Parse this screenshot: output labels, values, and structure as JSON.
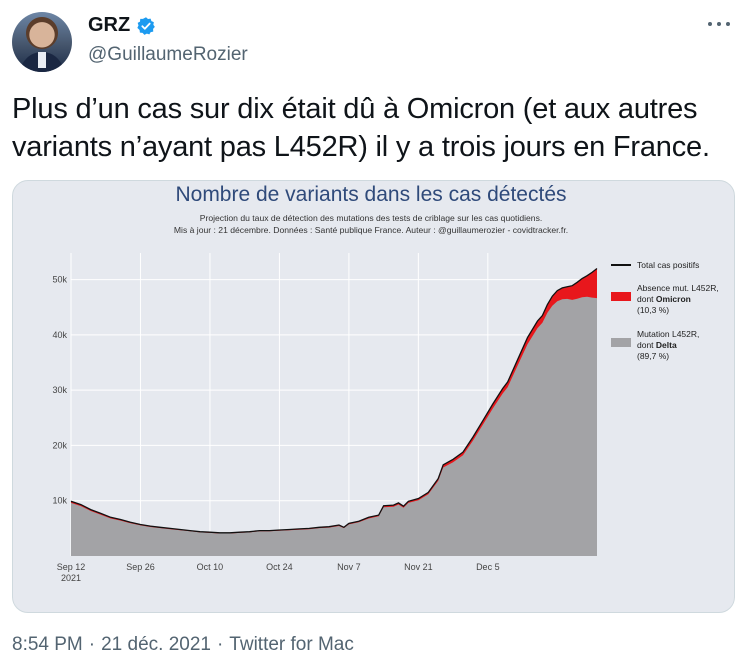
{
  "tweet": {
    "author_name": "GRZ",
    "author_handle": "@GuillaumeRozier",
    "text": "Plus d’un cas sur dix était dû à Omicron (et aux autres variants n’ayant pas L452R) il y a trois jours en France.",
    "time": "8:54 PM",
    "date": "21 déc. 2021",
    "source": "Twitter for Mac",
    "separator": "·"
  },
  "icons": {
    "verified": "verified-badge-icon",
    "more": "more-options-icon"
  },
  "colors": {
    "verified_blue": "#1d9bf0",
    "total_line": "#111111",
    "omicron": "#e8171c",
    "delta": "#a3a3a6",
    "title_blue": "#2f4a7a"
  },
  "chart_data": {
    "type": "area",
    "title": "Nombre de variants dans les cas détectés",
    "subtitle_line1": "Projection du taux de détection des mutations des tests de criblage sur les cas quotidiens.",
    "subtitle_line2": "Mis à jour : 21 décembre. Données : Santé publique France. Auteur : @guillaumerozier - covidtracker.fr.",
    "x_start": "Sep 12",
    "x_tick_labels": [
      "Sep 12",
      "Sep 26",
      "Oct 10",
      "Oct 24",
      "Nov 7",
      "Nov 21",
      "Dec 5"
    ],
    "x_first_year": "2021",
    "y_tick_labels": [
      "10k",
      "20k",
      "30k",
      "40k",
      "50k"
    ],
    "y_ticks": [
      10000,
      20000,
      30000,
      40000,
      50000
    ],
    "ylim": [
      0,
      53000
    ],
    "grid": true,
    "legend": {
      "position": "right",
      "total_label": "Total cas positifs",
      "omicron_lines": [
        "Absence mut. L452R,",
        "dont ",
        "Omicron",
        "(10,3 %)"
      ],
      "delta_lines": [
        "Mutation L452R,",
        "dont ",
        "Delta",
        "(89,7 %)"
      ]
    },
    "series": [
      {
        "name": "Total cas positifs",
        "points": [
          [
            0,
            9900
          ],
          [
            2,
            9300
          ],
          [
            4,
            8400
          ],
          [
            6,
            7700
          ],
          [
            8,
            7000
          ],
          [
            10,
            6600
          ],
          [
            12,
            6100
          ],
          [
            14,
            5700
          ],
          [
            16,
            5400
          ],
          [
            18,
            5200
          ],
          [
            20,
            5000
          ],
          [
            22,
            4800
          ],
          [
            24,
            4600
          ],
          [
            26,
            4400
          ],
          [
            28,
            4300
          ],
          [
            30,
            4200
          ],
          [
            32,
            4200
          ],
          [
            34,
            4300
          ],
          [
            36,
            4400
          ],
          [
            38,
            4600
          ],
          [
            40,
            4600
          ],
          [
            42,
            4700
          ],
          [
            44,
            4800
          ],
          [
            46,
            4900
          ],
          [
            48,
            5000
          ],
          [
            50,
            5200
          ],
          [
            52,
            5300
          ],
          [
            54,
            5600
          ],
          [
            55,
            5200
          ],
          [
            56,
            5900
          ],
          [
            58,
            6300
          ],
          [
            60,
            7000
          ],
          [
            62,
            7400
          ],
          [
            63,
            9100
          ],
          [
            65,
            9200
          ],
          [
            66,
            9600
          ],
          [
            67,
            9000
          ],
          [
            68,
            9900
          ],
          [
            70,
            10400
          ],
          [
            72,
            11500
          ],
          [
            74,
            14000
          ],
          [
            75,
            16500
          ],
          [
            77,
            17500
          ],
          [
            79,
            18800
          ],
          [
            81,
            21500
          ],
          [
            83,
            24500
          ],
          [
            85,
            27500
          ],
          [
            87,
            30300
          ],
          [
            88,
            31500
          ],
          [
            90,
            35500
          ],
          [
            92,
            39500
          ],
          [
            94,
            42500
          ],
          [
            95,
            43500
          ],
          [
            96,
            45500
          ],
          [
            97,
            47000
          ],
          [
            98,
            48000
          ],
          [
            99,
            48500
          ],
          [
            100,
            48700
          ],
          [
            101,
            48900
          ],
          [
            102,
            49500
          ],
          [
            103,
            50200
          ],
          [
            104,
            50700
          ],
          [
            105,
            51300
          ],
          [
            106,
            52000
          ]
        ]
      },
      {
        "name": "Omicron",
        "share_label": "10,3 %",
        "omicron_share_points": [
          [
            0,
            0.03
          ],
          [
            30,
            0.03
          ],
          [
            60,
            0.03
          ],
          [
            85,
            0.03
          ],
          [
            95,
            0.03
          ],
          [
            98,
            0.04
          ],
          [
            100,
            0.045
          ],
          [
            102,
            0.06
          ],
          [
            104,
            0.075
          ],
          [
            106,
            0.103
          ]
        ]
      },
      {
        "name": "Delta",
        "share_label": "89,7 %"
      }
    ]
  }
}
